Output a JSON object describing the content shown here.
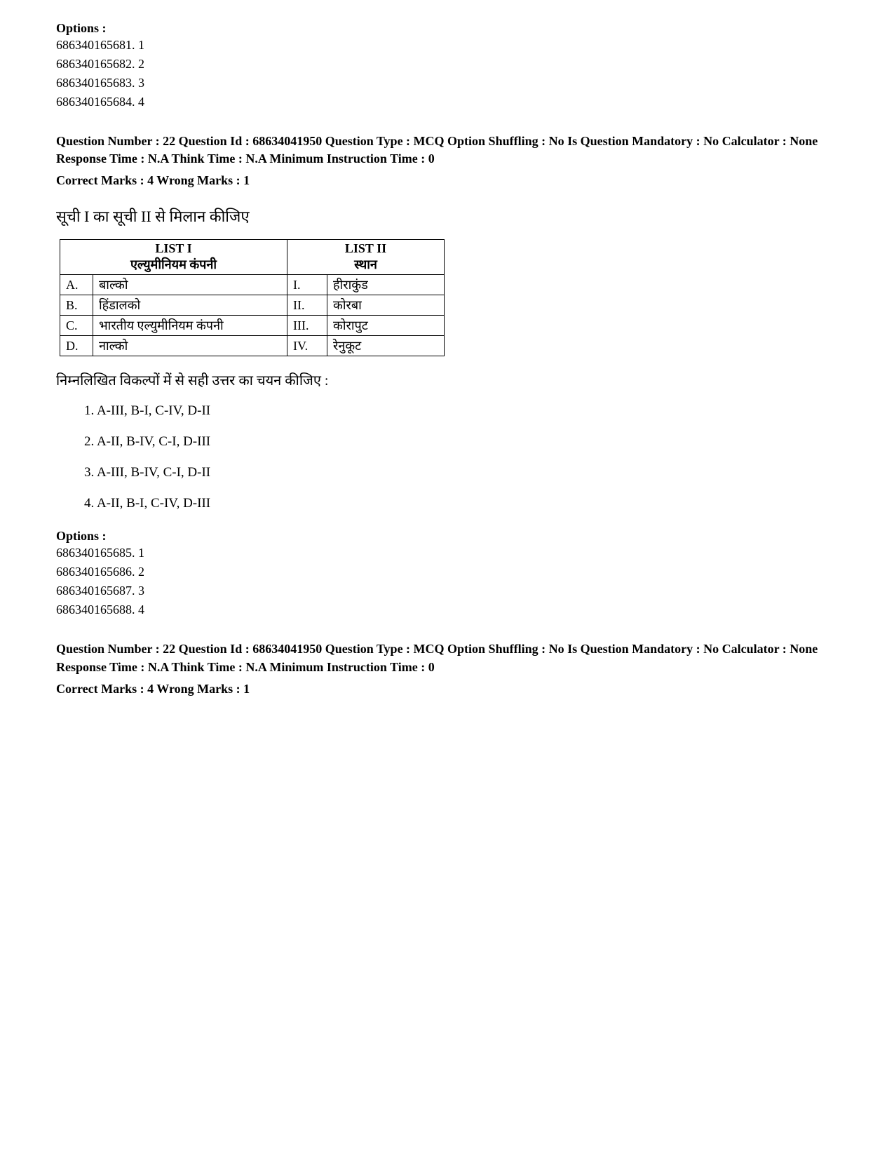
{
  "block1": {
    "options_label": "Options :",
    "options": [
      {
        "id": "686340165681.",
        "val": "1"
      },
      {
        "id": "686340165682.",
        "val": "2"
      },
      {
        "id": "686340165683.",
        "val": "3"
      },
      {
        "id": "686340165684.",
        "val": "4"
      }
    ]
  },
  "q22": {
    "meta": "Question Number : 22 Question Id : 68634041950 Question Type : MCQ Option Shuffling : No Is Question Mandatory : No Calculator : None Response Time : N.A Think Time : N.A Minimum Instruction Time : 0",
    "marks": "Correct Marks : 4 Wrong Marks : 1",
    "prompt_hi": "सूची I का सूची II से मिलान कीजिए",
    "table": {
      "h1": "LIST I",
      "h1sub": "एल्युमीनियम कंपनी",
      "h2": "LIST II",
      "h2sub": "स्थान",
      "rows": [
        {
          "l": "A.",
          "v1": "बाल्को",
          "r": "I.",
          "v2": "हीराकुंड"
        },
        {
          "l": "B.",
          "v1": "हिंडालको",
          "r": "II.",
          "v2": "कोरबा"
        },
        {
          "l": "C.",
          "v1": "भारतीय एल्युमीनियम कंपनी",
          "r": "III.",
          "v2": "कोरापुट"
        },
        {
          "l": "D.",
          "v1": "नाल्को",
          "r": "IV.",
          "v2": "रेनुकूट"
        }
      ]
    },
    "sub_hi": "निम्नलिखित विकल्पों में से सही उत्तर का चयन कीजिए :",
    "answers": [
      "1. A-III, B-I, C-IV, D-II",
      "2. A-II, B-IV, C-I, D-III",
      "3. A-III, B-IV, C-I, D-II",
      "4. A-II, B-I, C-IV, D-III"
    ]
  },
  "block2": {
    "options_label": "Options :",
    "options": [
      {
        "id": "686340165685.",
        "val": "1"
      },
      {
        "id": "686340165686.",
        "val": "2"
      },
      {
        "id": "686340165687.",
        "val": "3"
      },
      {
        "id": "686340165688.",
        "val": "4"
      }
    ]
  },
  "q22b": {
    "meta": "Question Number : 22 Question Id : 68634041950 Question Type : MCQ Option Shuffling : No Is Question Mandatory : No Calculator : None Response Time : N.A Think Time : N.A Minimum Instruction Time : 0",
    "marks": "Correct Marks : 4 Wrong Marks : 1"
  }
}
